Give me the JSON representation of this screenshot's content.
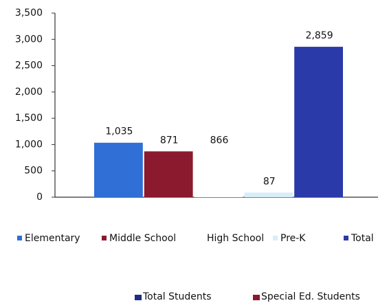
{
  "chart_data": {
    "type": "bar",
    "categories": [
      "Elementary",
      "Middle School",
      "High School",
      "Pre-K",
      "Total"
    ],
    "values": [
      1035,
      871,
      866,
      87,
      2859
    ],
    "value_labels": [
      "1,035",
      "871",
      "866",
      "87",
      "2,859"
    ],
    "colors": [
      "#2f6fd6",
      "#8b1a2e",
      "#ffffff",
      "#d6eef8",
      "#2a3aa8"
    ],
    "ylim": [
      0,
      3500
    ],
    "yticks": [
      0,
      500,
      {
        "value": 1000,
        "label": "1,000"
      },
      {
        "value": 1500,
        "label": "1,500"
      },
      {
        "value": 2000,
        "label": "2,000"
      },
      {
        "value": 2500,
        "label": "2,500"
      },
      {
        "value": 3000,
        "label": "3,000"
      },
      {
        "value": 3500,
        "label": "3,500"
      }
    ],
    "grid": false,
    "legend": "bottom",
    "legend2": [
      {
        "name": "Total Students",
        "color": "#1f2c80"
      },
      {
        "name": "Special Ed. Students",
        "color": "#8b1a2e"
      }
    ]
  }
}
